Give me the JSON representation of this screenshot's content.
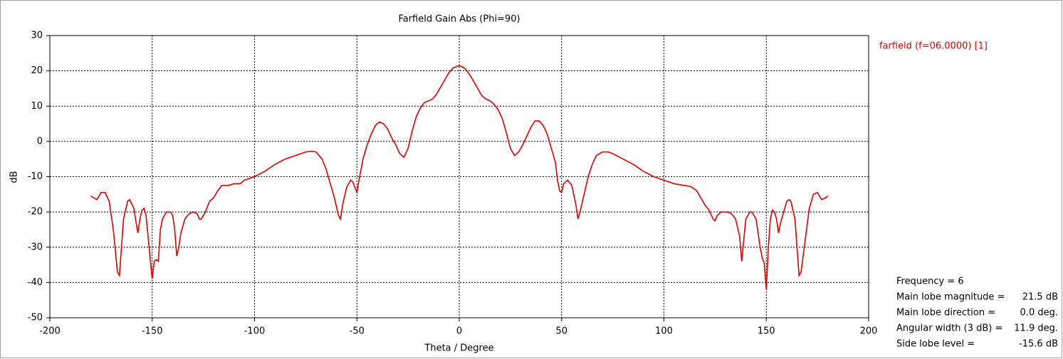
{
  "chart_data": {
    "type": "line",
    "title": "Farfield Gain Abs (Phi=90)",
    "x_label": "Theta / Degree",
    "y_label": "dB",
    "xlim": [
      -200,
      200
    ],
    "xticks": [
      -200,
      -150,
      -100,
      -50,
      0,
      50,
      100,
      150,
      200
    ],
    "ylim": [
      -50,
      30
    ],
    "yticks": [
      -50,
      -40,
      -30,
      -20,
      -10,
      0,
      10,
      20,
      30
    ],
    "grid": true,
    "legend": "top-right",
    "series": [
      {
        "name": "farfield (f=06.0000) [1]",
        "color": "#e00000",
        "x": [
          -180,
          -177,
          -175,
          -173,
          -171,
          -169,
          -167,
          -166,
          -165,
          -164,
          -162,
          -161,
          -159,
          -157,
          -156,
          -155,
          -154,
          -153,
          -151,
          -150,
          -149,
          -148,
          -147,
          -146,
          -145,
          -143,
          -141,
          -140,
          -139,
          -138,
          -137,
          -136,
          -134,
          -132,
          -130,
          -128,
          -127,
          -126,
          -124,
          -122,
          -120,
          -118,
          -116,
          -113,
          -110,
          -107,
          -105,
          -100,
          -95,
          -90,
          -85,
          -80,
          -75,
          -72,
          -70,
          -67,
          -65,
          -63,
          -61,
          -59,
          -58,
          -57,
          -55,
          -53,
          -52,
          -51,
          -50,
          -49,
          -47,
          -45,
          -43,
          -41,
          -39,
          -37,
          -35,
          -33,
          -31,
          -29,
          -27,
          -25,
          -23,
          -21,
          -19,
          -17,
          -15,
          -13,
          -11,
          -9,
          -7,
          -5,
          -3,
          -1,
          0,
          1,
          3,
          5,
          7,
          9,
          11,
          13,
          15,
          17,
          19,
          21,
          23,
          25,
          27,
          29,
          31,
          33,
          35,
          37,
          39,
          41,
          43,
          45,
          47,
          48,
          49,
          50,
          51,
          53,
          55,
          57,
          58,
          59,
          61,
          63,
          65,
          67,
          70,
          73,
          75,
          80,
          85,
          90,
          95,
          100,
          105,
          110,
          113,
          116,
          118,
          120,
          122,
          124,
          125,
          126,
          128,
          131,
          133,
          135,
          137,
          138,
          139,
          140,
          142,
          143,
          145,
          147,
          148,
          149,
          150,
          151,
          152,
          153,
          154,
          155,
          156,
          157,
          159,
          160,
          161,
          162,
          164,
          165,
          166,
          167,
          169,
          171,
          173,
          175,
          177,
          179,
          180
        ],
        "values": [
          -15.5,
          -16.5,
          -14.5,
          -14.5,
          -17,
          -25,
          -37,
          -38,
          -30,
          -22,
          -17,
          -16.5,
          -19,
          -26,
          -22,
          -19.5,
          -19,
          -21,
          -33,
          -39,
          -34,
          -33.5,
          -34,
          -25,
          -22,
          -20,
          -20,
          -21,
          -25,
          -32.5,
          -30,
          -26,
          -22,
          -20.5,
          -20,
          -20.5,
          -22,
          -22,
          -20,
          -17,
          -16,
          -14,
          -12.5,
          -12.5,
          -12,
          -12,
          -11,
          -10,
          -8.5,
          -6.5,
          -5,
          -4,
          -3,
          -2.8,
          -3,
          -5,
          -8,
          -12,
          -16,
          -21,
          -22,
          -18,
          -13,
          -11,
          -11.5,
          -13,
          -14.5,
          -11,
          -5,
          -1,
          2,
          4.5,
          5.5,
          5,
          3.5,
          1,
          -1,
          -3.5,
          -4.5,
          -2,
          3,
          7,
          9.5,
          11,
          11.5,
          12,
          13.5,
          15.5,
          17.5,
          19.5,
          20.8,
          21.3,
          21.4,
          21.3,
          20.5,
          19,
          17,
          15,
          13,
          12,
          11.5,
          10.5,
          9,
          6.5,
          2.5,
          -2,
          -4,
          -3,
          -1,
          1.5,
          4,
          5.8,
          5.8,
          4.5,
          2,
          -2,
          -6,
          -11,
          -14,
          -14.5,
          -12,
          -11,
          -12.5,
          -18,
          -22,
          -20,
          -15,
          -10,
          -6.5,
          -4,
          -3,
          -3,
          -3.5,
          -5,
          -6.5,
          -8.5,
          -10,
          -11,
          -12,
          -12.5,
          -12.8,
          -14,
          -16,
          -18,
          -19.5,
          -22,
          -22.5,
          -21,
          -20,
          -20,
          -20.5,
          -22,
          -27,
          -34,
          -28,
          -22,
          -20,
          -20,
          -22,
          -30,
          -33,
          -34.5,
          -42,
          -30,
          -22,
          -19.5,
          -20,
          -22,
          -26,
          -23,
          -19,
          -17,
          -16.5,
          -17,
          -22,
          -30,
          -38,
          -37,
          -28,
          -19,
          -15,
          -14.5,
          -16.5,
          -16,
          -15.5
        ]
      }
    ],
    "annotations": [
      {
        "label": "Frequency = 6"
      },
      {
        "label": "Main lobe magnitude =",
        "value": "21.5 dB"
      },
      {
        "label": "Main lobe direction =",
        "value": "0.0 deg."
      },
      {
        "label": "Angular width (3 dB) =",
        "value": "11.9 deg."
      },
      {
        "label": "Side lobe level =",
        "value": "-15.6 dB"
      }
    ]
  }
}
